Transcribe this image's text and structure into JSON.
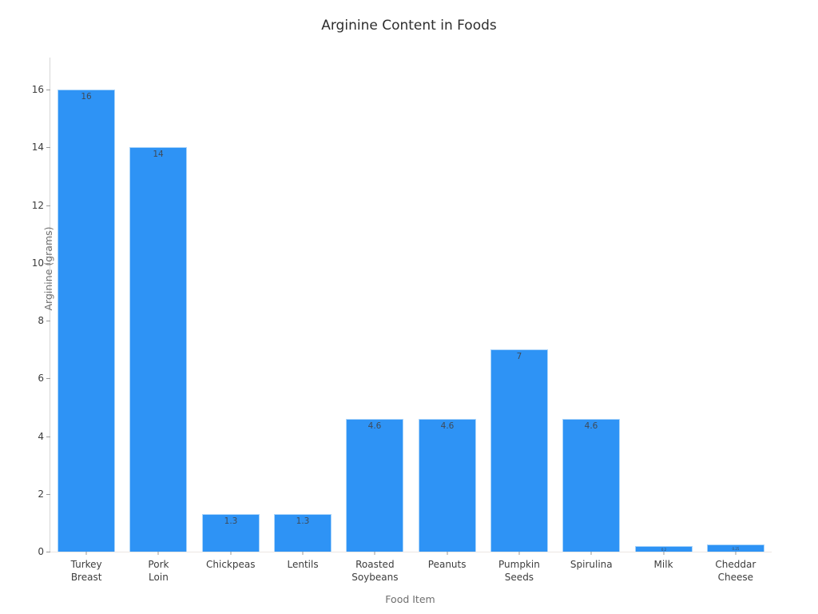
{
  "chart_data": {
    "type": "bar",
    "title": "Arginine Content in Foods",
    "xlabel": "Food Item",
    "ylabel": "Arginine (grams)",
    "categories": [
      "Turkey\nBreast",
      "Pork\nLoin",
      "Chickpeas",
      "Lentils",
      "Roasted\nSoybeans",
      "Peanuts",
      "Pumpkin\nSeeds",
      "Spirulina",
      "Milk",
      "Cheddar\nCheese"
    ],
    "values": [
      16,
      14,
      1.3,
      1.3,
      4.6,
      4.6,
      7,
      4.6,
      0.2,
      0.25
    ],
    "value_labels": [
      "16",
      "14",
      "1.3",
      "1.3",
      "4.6",
      "4.6",
      "7",
      "4.6",
      "0.2",
      "0.25"
    ],
    "yticks": [
      0,
      2,
      4,
      6,
      8,
      10,
      12,
      14,
      16
    ],
    "ylim": [
      0,
      17.11
    ],
    "bar_color": "#2e93f5",
    "bar_edge_color": "#a9d4fa",
    "grid": "off",
    "legend": "none"
  }
}
